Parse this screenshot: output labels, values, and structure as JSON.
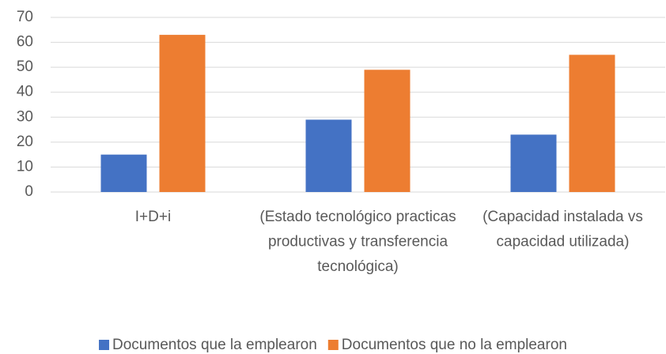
{
  "chart_data": {
    "type": "bar",
    "categories": [
      "I+D+i",
      "(Estado tecnológico practicas productivas y transferencia tecnológica)",
      "(Capacidad instalada vs capacidad utilizada)"
    ],
    "series": [
      {
        "name": "Documentos que la emplearon",
        "color": "#4472c4",
        "values": [
          15,
          29,
          23
        ]
      },
      {
        "name": "Documentos que no la emplearon",
        "color": "#ed7d31",
        "values": [
          63,
          49,
          55
        ]
      }
    ],
    "ylim": [
      0,
      70
    ],
    "yticks": [
      0,
      10,
      20,
      30,
      40,
      50,
      60,
      70
    ],
    "grid": true,
    "legend": "bottom"
  }
}
